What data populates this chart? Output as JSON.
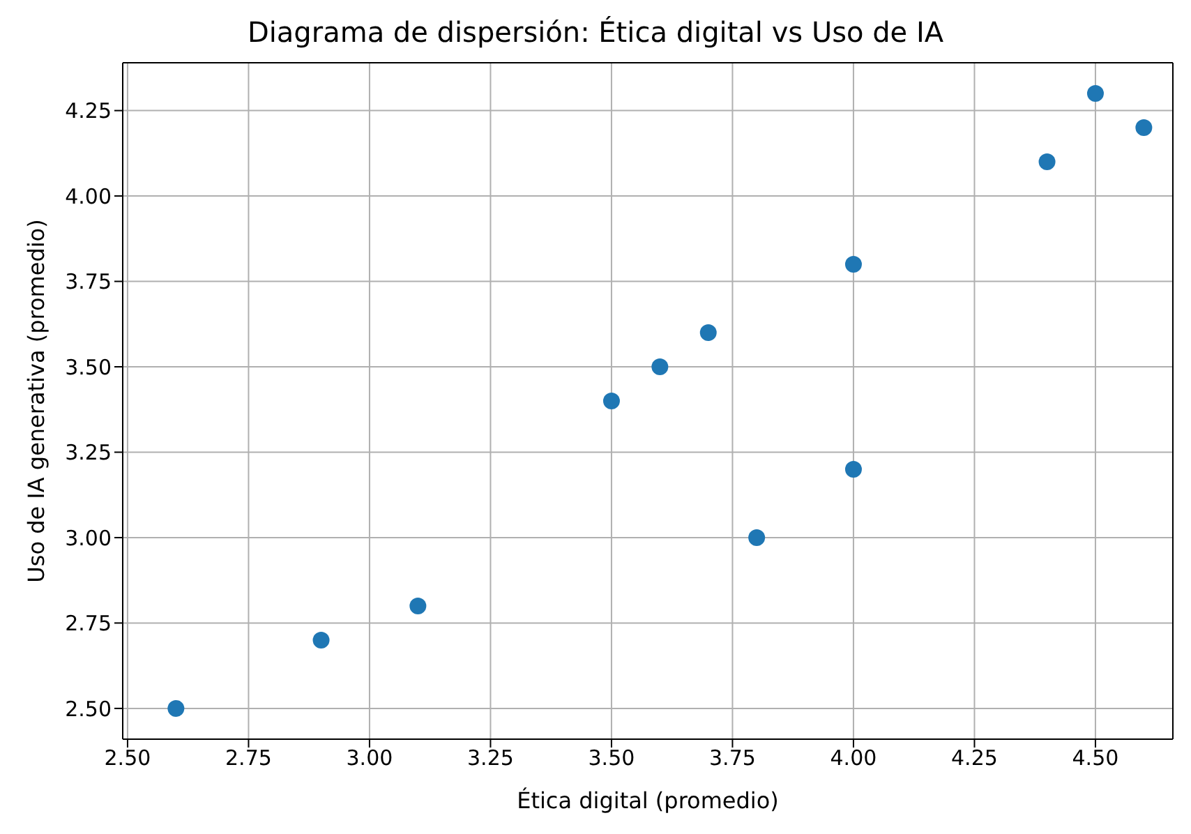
{
  "chart_data": {
    "type": "scatter",
    "title": "Diagrama de dispersión: Ética digital vs Uso de IA",
    "xlabel": "Ética digital (promedio)",
    "ylabel": "Uso de IA generativa (promedio)",
    "x": [
      2.6,
      2.9,
      3.1,
      3.5,
      3.6,
      3.7,
      3.8,
      4.0,
      4.0,
      4.4,
      4.5,
      4.6
    ],
    "series": [
      {
        "color": "#1f77b4",
        "values": [
          2.5,
          2.7,
          2.8,
          3.4,
          3.5,
          3.6,
          3.0,
          3.2,
          3.8,
          4.1,
          4.3,
          4.2
        ]
      }
    ],
    "xlim": [
      2.49,
      4.66
    ],
    "xticks": [
      {
        "value": 2.5,
        "label": "2.50"
      },
      {
        "value": 2.75,
        "label": "2.75"
      },
      {
        "value": 3,
        "label": "3.00"
      },
      {
        "value": 3.25,
        "label": "3.25"
      },
      {
        "value": 3.5,
        "label": "3.50"
      },
      {
        "value": 3.75,
        "label": "3.75"
      },
      {
        "value": 4,
        "label": "4.00"
      },
      {
        "value": 4.25,
        "label": "4.25"
      },
      {
        "value": 4.5,
        "label": "4.50"
      }
    ],
    "ylim": [
      2.41,
      4.39
    ],
    "yticks": [
      {
        "value": 2.5,
        "label": "2.50"
      },
      {
        "value": 2.75,
        "label": "2.75"
      },
      {
        "value": 3,
        "label": "3.00"
      },
      {
        "value": 3.25,
        "label": "3.25"
      },
      {
        "value": 3.5,
        "label": "3.50"
      },
      {
        "value": 3.75,
        "label": "3.75"
      },
      {
        "value": 4,
        "label": "4.00"
      },
      {
        "value": 4.25,
        "label": "4.25"
      }
    ],
    "grid": true,
    "marker": "circle",
    "legend": false
  }
}
